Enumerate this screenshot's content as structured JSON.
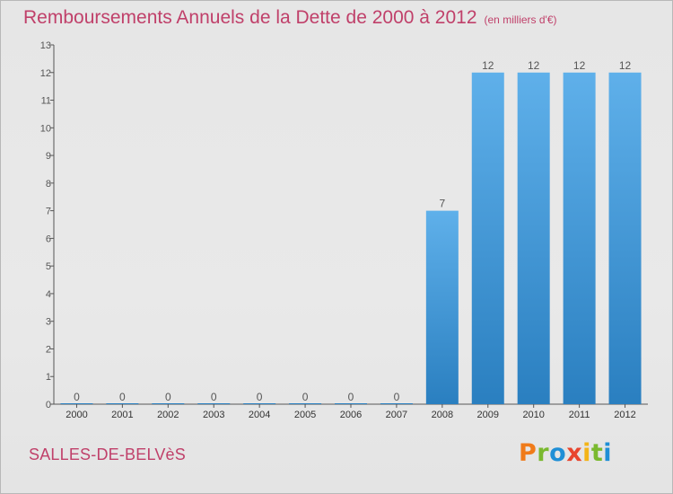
{
  "chart_data": {
    "type": "bar",
    "title": "Remboursements Annuels de la Dette de 2000 à 2012",
    "unit_note": "(en milliers d'€)",
    "categories": [
      "2000",
      "2001",
      "2002",
      "2003",
      "2004",
      "2005",
      "2006",
      "2007",
      "2008",
      "2009",
      "2010",
      "2011",
      "2012"
    ],
    "values": [
      0,
      0,
      0,
      0,
      0,
      0,
      0,
      0,
      7,
      12,
      12,
      12,
      12
    ],
    "data_labels": [
      "0",
      "0",
      "0",
      "0",
      "0",
      "0",
      "0",
      "0",
      "7",
      "12",
      "12",
      "12",
      "12"
    ],
    "ylim": [
      0,
      13
    ],
    "yticks": [
      "0",
      "1",
      "2",
      "3",
      "4",
      "5",
      "6",
      "7",
      "8",
      "9",
      "10",
      "11",
      "12",
      "13"
    ],
    "grid": false,
    "bar_color_top": "#5fb0ea",
    "bar_color_bottom": "#2a7fc0"
  },
  "footer": {
    "commune": "SALLES-DE-BELVèS",
    "logo_letters": [
      "P",
      "r",
      "o",
      "x",
      "i",
      "t",
      "i"
    ]
  }
}
